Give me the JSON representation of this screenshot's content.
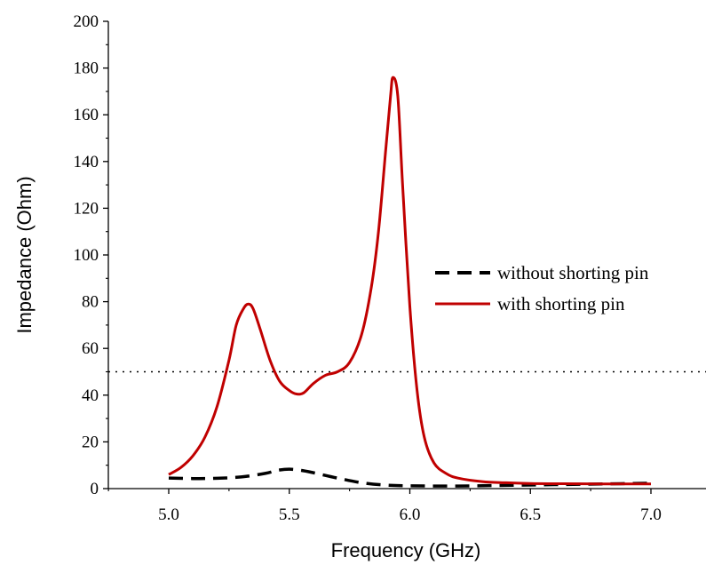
{
  "chart_data": {
    "type": "line",
    "title": "",
    "xlabel": "Frequency (GHz)",
    "ylabel": "Impedance (Ohm)",
    "xlim": [
      4.75,
      7.2
    ],
    "ylim": [
      0,
      200
    ],
    "xticks": [
      "5.0",
      "5.5",
      "6.0",
      "6.5",
      "7.0"
    ],
    "yticks": [
      "0",
      "20",
      "40",
      "60",
      "80",
      "100",
      "120",
      "140",
      "160",
      "180",
      "200"
    ],
    "grid": false,
    "legend_position": "right",
    "reference_line": {
      "y": 50,
      "style": "dotted"
    },
    "series": [
      {
        "name": "without shorting pin",
        "color": "#000000",
        "style": "dashed",
        "x": [
          5.0,
          5.1,
          5.2,
          5.3,
          5.4,
          5.45,
          5.5,
          5.55,
          5.6,
          5.7,
          5.8,
          5.9,
          6.0,
          6.2,
          6.4,
          6.6,
          6.8,
          7.0
        ],
        "y": [
          4.5,
          4.3,
          4.4,
          5.0,
          6.5,
          7.8,
          8.3,
          7.8,
          6.8,
          4.5,
          2.5,
          1.5,
          1.2,
          1.1,
          1.4,
          1.7,
          2.0,
          2.3
        ]
      },
      {
        "name": "with shorting pin",
        "color": "#c00000",
        "style": "solid",
        "x": [
          5.0,
          5.05,
          5.1,
          5.15,
          5.2,
          5.25,
          5.28,
          5.31,
          5.33,
          5.35,
          5.38,
          5.42,
          5.46,
          5.5,
          5.53,
          5.56,
          5.6,
          5.65,
          5.7,
          5.75,
          5.8,
          5.84,
          5.87,
          5.9,
          5.92,
          5.93,
          5.95,
          5.97,
          6.0,
          6.03,
          6.06,
          6.1,
          6.15,
          6.2,
          6.3,
          6.4,
          6.5,
          6.6,
          6.8,
          7.0
        ],
        "y": [
          6,
          9,
          14,
          22,
          35,
          55,
          70,
          77,
          79,
          77,
          68,
          55,
          46,
          42,
          40.5,
          41,
          45,
          48.5,
          50,
          54,
          66,
          86,
          110,
          145,
          168,
          176,
          168,
          130,
          78,
          42,
          22,
          11,
          6.5,
          4.5,
          3,
          2.5,
          2.2,
          2.1,
          2.0,
          2.0
        ]
      }
    ]
  }
}
